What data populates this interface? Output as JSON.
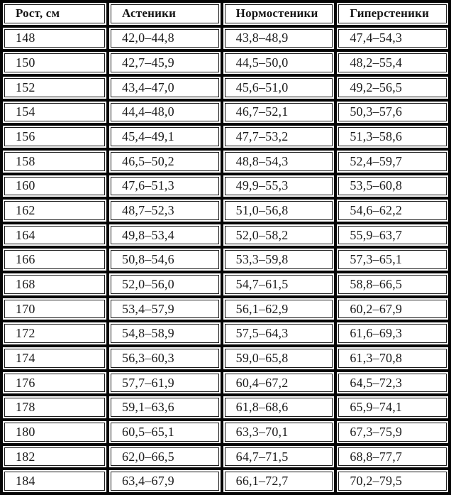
{
  "table": {
    "headers": [
      "Рост, см",
      "Астеники",
      "Нормостеники",
      "Гиперстеники"
    ],
    "rows": [
      {
        "height": "148",
        "asthenic": "42,0–44,8",
        "normosthenic": "43,8–48,9",
        "hypersthenic": "47,4–54,3"
      },
      {
        "height": "150",
        "asthenic": "42,7–45,9",
        "normosthenic": "44,5–50,0",
        "hypersthenic": "48,2–55,4"
      },
      {
        "height": "152",
        "asthenic": "43,4–47,0",
        "normosthenic": "45,6–51,0",
        "hypersthenic": "49,2–56,5"
      },
      {
        "height": "154",
        "asthenic": "44,4–48,0",
        "normosthenic": "46,7–52,1",
        "hypersthenic": "50,3–57,6"
      },
      {
        "height": "156",
        "asthenic": "45,4–49,1",
        "normosthenic": "47,7–53,2",
        "hypersthenic": "51,3–58,6"
      },
      {
        "height": "158",
        "asthenic": "46,5–50,2",
        "normosthenic": "48,8–54,3",
        "hypersthenic": "52,4–59,7"
      },
      {
        "height": "160",
        "asthenic": "47,6–51,3",
        "normosthenic": "49,9–55,3",
        "hypersthenic": "53,5–60,8"
      },
      {
        "height": "162",
        "asthenic": "48,7–52,3",
        "normosthenic": "51,0–56,8",
        "hypersthenic": "54,6–62,2"
      },
      {
        "height": "164",
        "asthenic": "49,8–53,4",
        "normosthenic": "52,0–58,2",
        "hypersthenic": "55,9–63,7"
      },
      {
        "height": "166",
        "asthenic": "50,8–54,6",
        "normosthenic": "53,3–59,8",
        "hypersthenic": "57,3–65,1"
      },
      {
        "height": "168",
        "asthenic": "52,0–56,0",
        "normosthenic": "54,7–61,5",
        "hypersthenic": "58,8–66,5"
      },
      {
        "height": "170",
        "asthenic": "53,4–57,9",
        "normosthenic": "56,1–62,9",
        "hypersthenic": "60,2–67,9"
      },
      {
        "height": "172",
        "asthenic": "54,8–58,9",
        "normosthenic": "57,5–64,3",
        "hypersthenic": "61,6–69,3"
      },
      {
        "height": "174",
        "asthenic": "56,3–60,3",
        "normosthenic": "59,0–65,8",
        "hypersthenic": "61,3–70,8"
      },
      {
        "height": "176",
        "asthenic": "57,7–61,9",
        "normosthenic": "60,4–67,2",
        "hypersthenic": "64,5–72,3"
      },
      {
        "height": "178",
        "asthenic": "59,1–63,6",
        "normosthenic": "61,8–68,6",
        "hypersthenic": "65,9–74,1"
      },
      {
        "height": "180",
        "asthenic": "60,5–65,1",
        "normosthenic": "63,3–70,1",
        "hypersthenic": "67,3–75,9"
      },
      {
        "height": "182",
        "asthenic": "62,0–66,5",
        "normosthenic": "64,7–71,5",
        "hypersthenic": "68,8–77,7"
      },
      {
        "height": "184",
        "asthenic": "63,4–67,9",
        "normosthenic": "66,1–72,7",
        "hypersthenic": "70,2–79,5"
      }
    ]
  },
  "colors": {
    "grid_line": "#050505",
    "cell_background": "#ffffff",
    "cell_border": "#1a1a1a",
    "text": "#1c1c1c"
  }
}
